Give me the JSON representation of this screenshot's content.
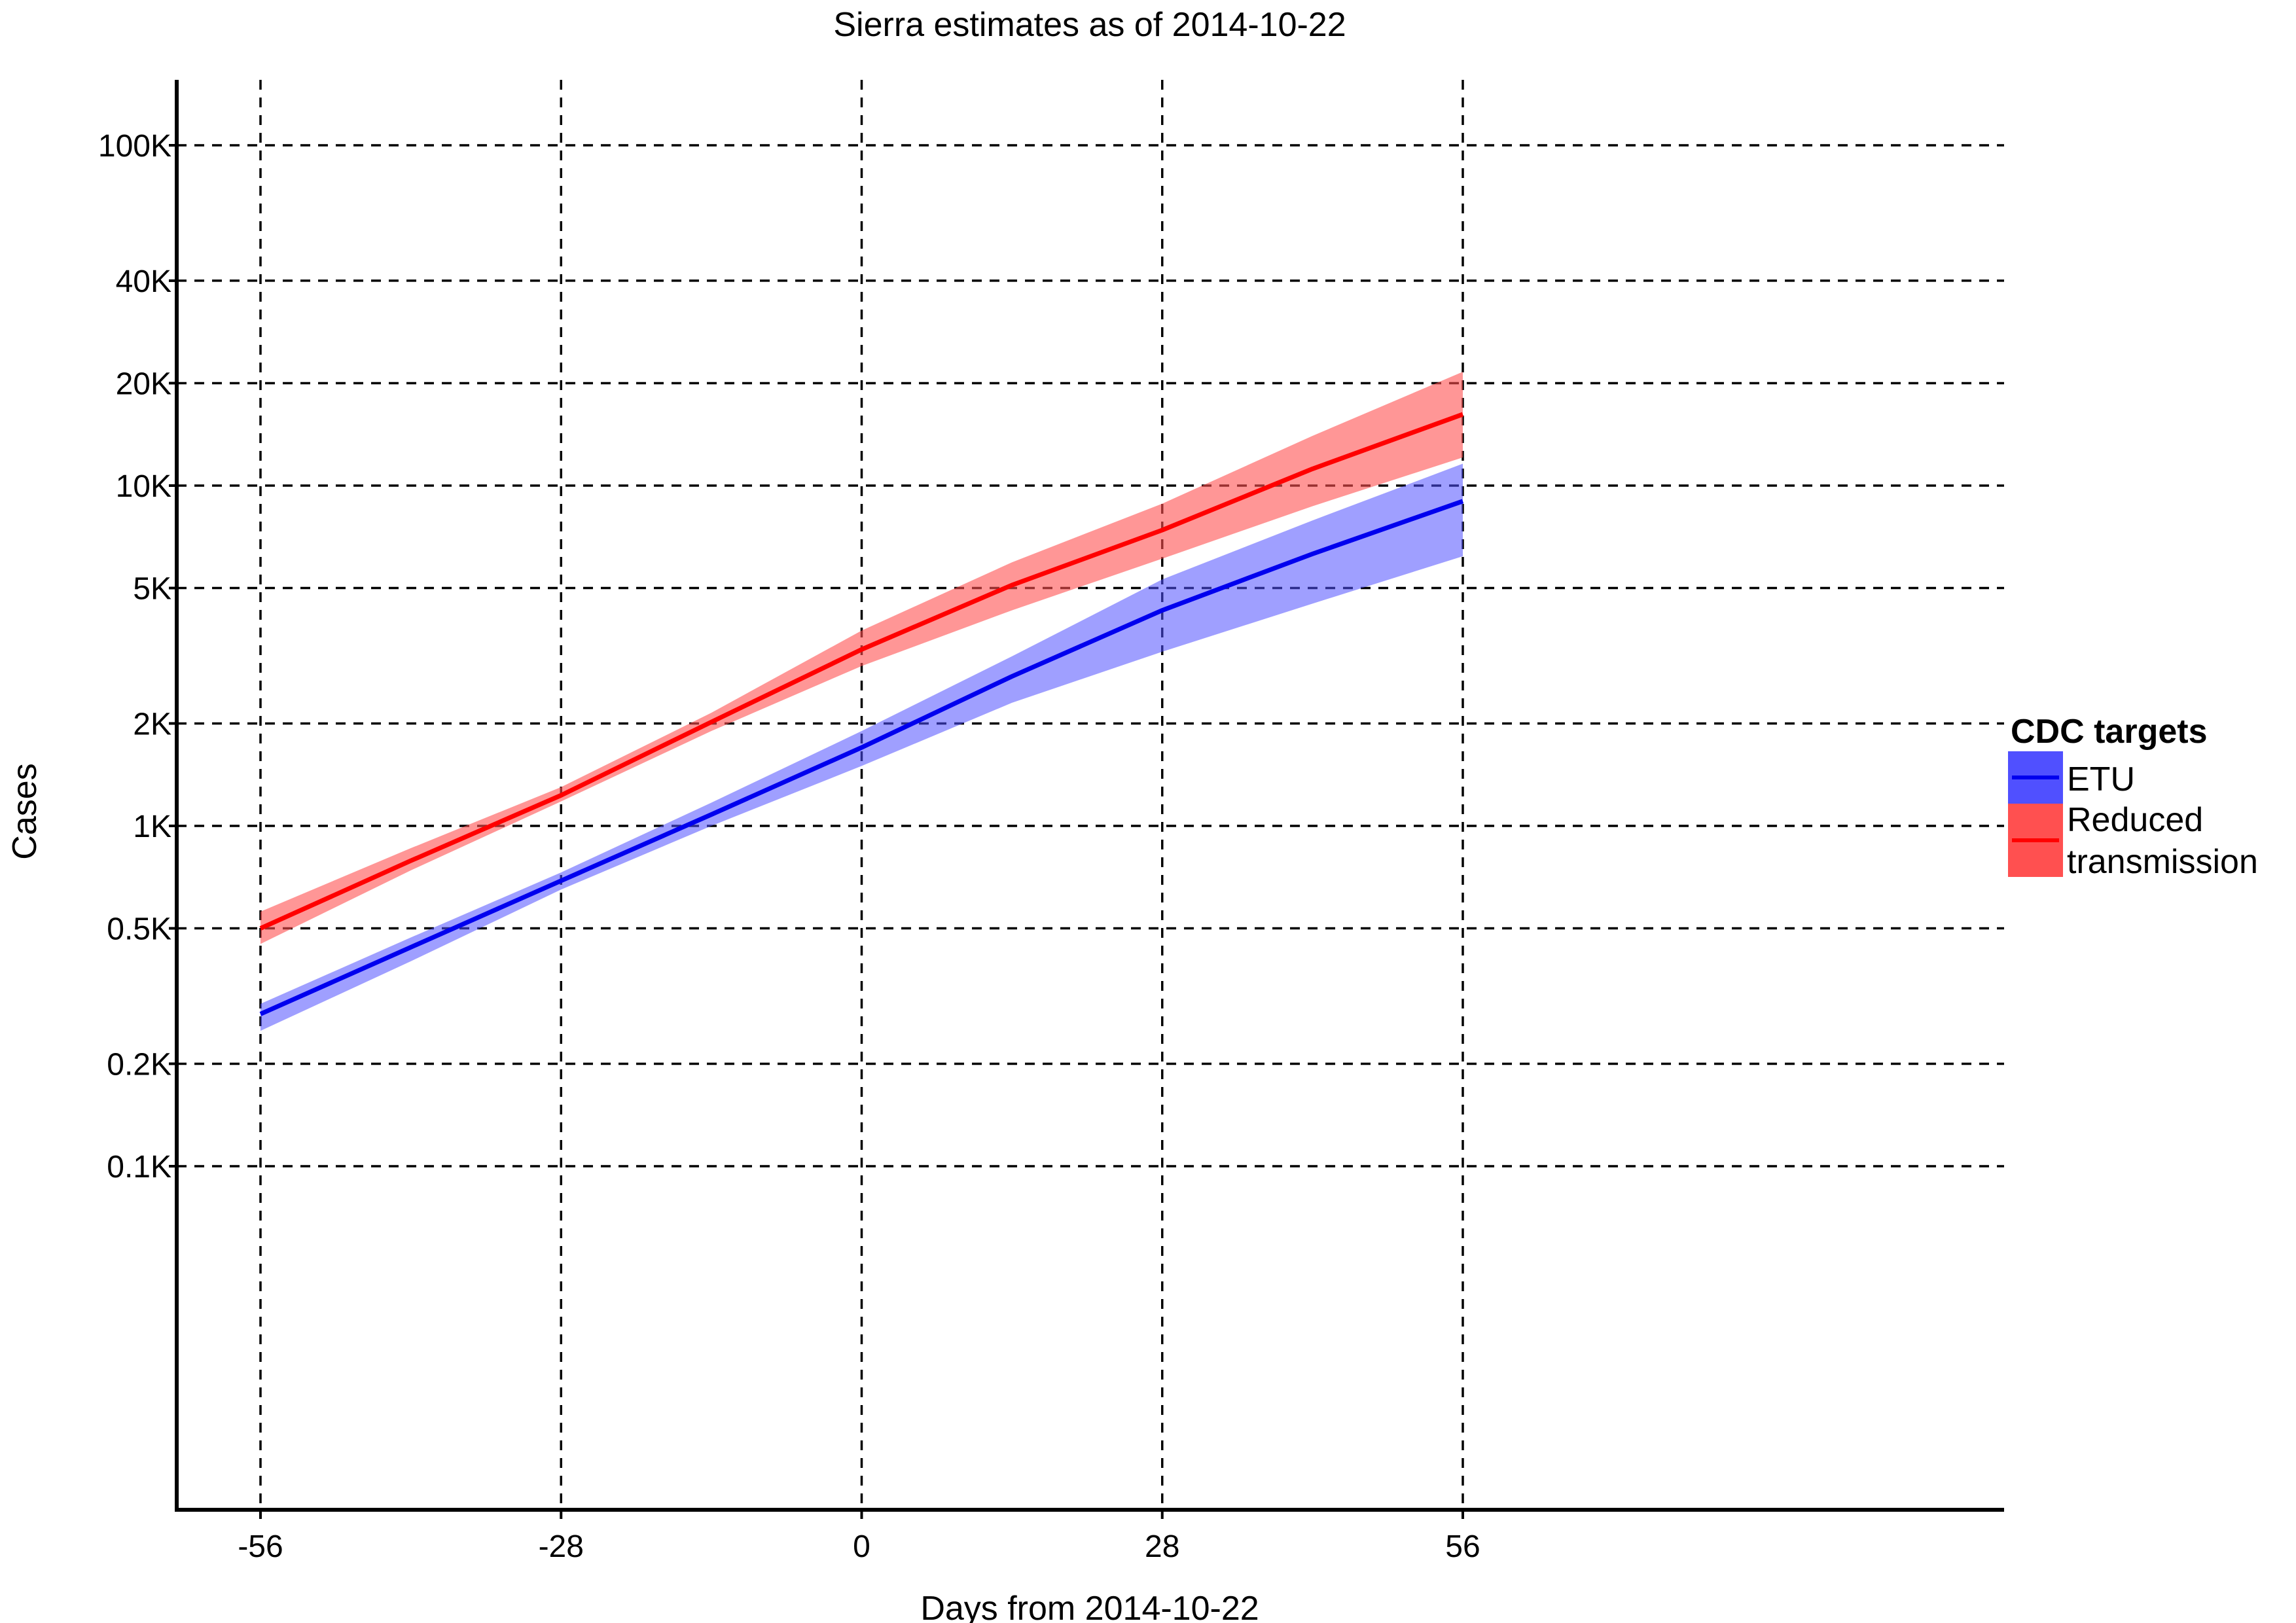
{
  "chart_data": {
    "type": "line",
    "title": "Sierra estimates as of 2014-10-22",
    "xlabel": "Days from 2014-10-22",
    "ylabel": "Cases",
    "x_scale": "linear",
    "y_scale": "log",
    "xlim": [
      -61,
      70
    ],
    "ylim": [
      10,
      140000
    ],
    "x_ticks": [
      {
        "value": -56,
        "label": "-56"
      },
      {
        "value": -28,
        "label": "-28"
      },
      {
        "value": 0,
        "label": "0"
      },
      {
        "value": 28,
        "label": "28"
      },
      {
        "value": 56,
        "label": "56"
      }
    ],
    "y_ticks": [
      {
        "value": 100,
        "label": "0.1K"
      },
      {
        "value": 200,
        "label": "0.2K"
      },
      {
        "value": 500,
        "label": "0.5K"
      },
      {
        "value": 1000,
        "label": "1K"
      },
      {
        "value": 2000,
        "label": "2K"
      },
      {
        "value": 5000,
        "label": "5K"
      },
      {
        "value": 10000,
        "label": "10K"
      },
      {
        "value": 20000,
        "label": "20K"
      },
      {
        "value": 40000,
        "label": "40K"
      },
      {
        "value": 100000,
        "label": "100K"
      }
    ],
    "grid": true,
    "legend": {
      "title": "CDC targets",
      "placement": "right",
      "entries": [
        "ETU",
        "Reduced transmission"
      ]
    },
    "series": [
      {
        "name": "ETU",
        "color": "#0000ee",
        "band_color": "#5050ff",
        "x": [
          -56,
          -42,
          -28,
          -14,
          0,
          14,
          28,
          42,
          56
        ],
        "values": [
          280,
          440,
          690,
          1080,
          1700,
          2750,
          4300,
          6300,
          9000
        ],
        "lower": [
          250,
          400,
          650,
          1000,
          1500,
          2300,
          3250,
          4500,
          6200
        ],
        "upper": [
          300,
          470,
          730,
          1170,
          1900,
          3150,
          5300,
          7900,
          11600
        ]
      },
      {
        "name": "Reduced transmission",
        "color": "#ff0000",
        "band_color": "#ff5050",
        "x": [
          -56,
          -42,
          -28,
          -14,
          0,
          14,
          28,
          42,
          56
        ],
        "values": [
          500,
          790,
          1230,
          2020,
          3300,
          5100,
          7400,
          11200,
          16200
        ],
        "lower": [
          450,
          740,
          1180,
          1900,
          2950,
          4300,
          6100,
          8700,
          12100
        ],
        "upper": [
          560,
          860,
          1300,
          2150,
          3750,
          5950,
          8850,
          14000,
          21600
        ]
      }
    ]
  }
}
